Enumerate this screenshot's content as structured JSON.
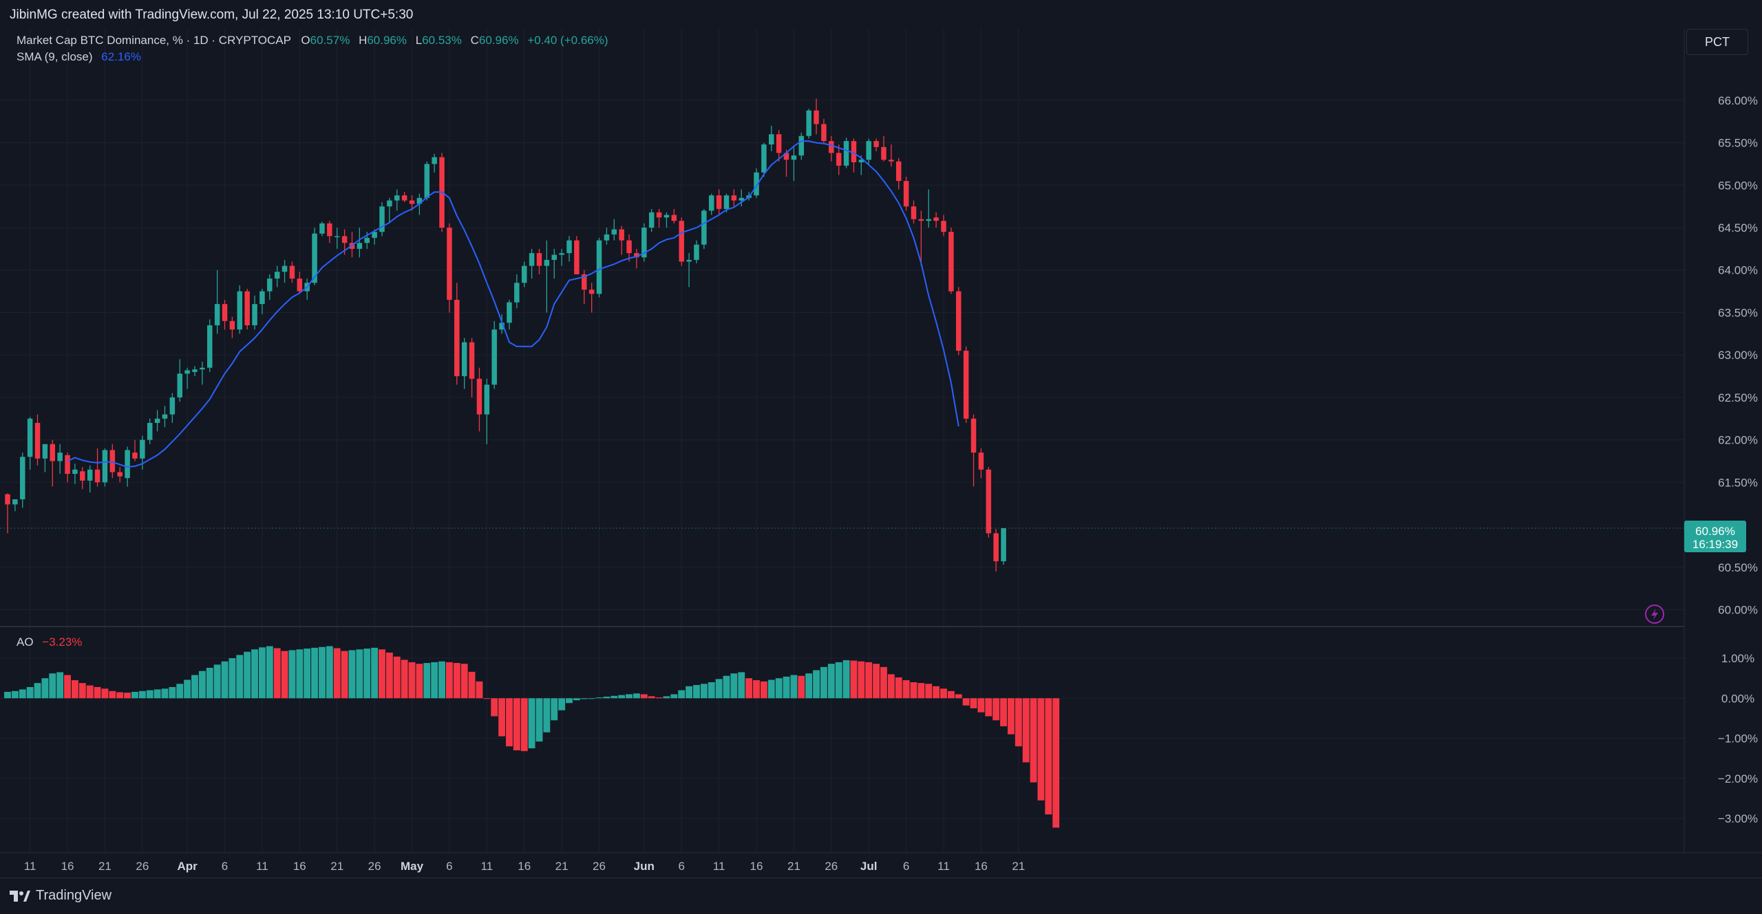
{
  "header": {
    "caption": "JibinMG created with TradingView.com, Jul 22, 2025 13:10 UTC+5:30"
  },
  "legend": {
    "symbol": "Market Cap BTC Dominance, % · 1D · CRYPTOCAP",
    "o_label": "O",
    "o_value": "60.57%",
    "h_label": "H",
    "h_value": "60.96%",
    "l_label": "L",
    "l_value": "60.53%",
    "c_label": "C",
    "c_value": "60.96%",
    "change": "+0.40 (+0.66%)",
    "sma_label": "SMA (9, close)",
    "sma_value": "62.16%"
  },
  "ao_legend": {
    "label": "AO",
    "value": "−3.23%"
  },
  "scale_button": "PCT",
  "price_tag": {
    "price": "60.96%",
    "countdown": "16:19:39"
  },
  "footer": {
    "brand": "TradingView"
  },
  "colors": {
    "up": "#26a69a",
    "down": "#f23645",
    "sma": "#2962ff",
    "background": "#131722",
    "grid": "#1e222d"
  },
  "icons": {
    "alert": "lightning-icon",
    "logo": "tradingview-logo-icon"
  },
  "chart_data": [
    {
      "type": "candlestick",
      "title": "Market Cap BTC Dominance, % · 1D · CRYPTOCAP",
      "y_unit": "%",
      "ylim": [
        59.85,
        66.25
      ],
      "y_ticks": [
        "66.00%",
        "65.50%",
        "65.00%",
        "64.50%",
        "64.00%",
        "63.50%",
        "63.00%",
        "62.50%",
        "62.00%",
        "61.50%",
        "60.50%",
        "60.00%"
      ],
      "y_tick_values": [
        66.0,
        65.5,
        65.0,
        64.5,
        64.0,
        63.5,
        63.0,
        62.5,
        62.0,
        61.5,
        60.5,
        60.0
      ],
      "x_ticks": [
        {
          "label": "11",
          "i": 3
        },
        {
          "label": "16",
          "i": 8
        },
        {
          "label": "21",
          "i": 13
        },
        {
          "label": "26",
          "i": 18
        },
        {
          "label": "Apr",
          "i": 24,
          "bold": true
        },
        {
          "label": "6",
          "i": 29
        },
        {
          "label": "11",
          "i": 34
        },
        {
          "label": "16",
          "i": 39
        },
        {
          "label": "21",
          "i": 44
        },
        {
          "label": "26",
          "i": 49
        },
        {
          "label": "May",
          "i": 54,
          "bold": true
        },
        {
          "label": "6",
          "i": 59
        },
        {
          "label": "11",
          "i": 64
        },
        {
          "label": "16",
          "i": 69
        },
        {
          "label": "21",
          "i": 74
        },
        {
          "label": "26",
          "i": 79
        },
        {
          "label": "Jun",
          "i": 85,
          "bold": true
        },
        {
          "label": "6",
          "i": 90
        },
        {
          "label": "11",
          "i": 95
        },
        {
          "label": "16",
          "i": 100
        },
        {
          "label": "21",
          "i": 105
        },
        {
          "label": "26",
          "i": 110
        },
        {
          "label": "Jul",
          "i": 115,
          "bold": true
        },
        {
          "label": "6",
          "i": 120
        },
        {
          "label": "11",
          "i": 125
        },
        {
          "label": "16",
          "i": 130
        },
        {
          "label": "21",
          "i": 135
        }
      ],
      "candles": [
        [
          61.36,
          61.37,
          60.9,
          61.24
        ],
        [
          61.24,
          61.3,
          61.16,
          61.3
        ],
        [
          61.3,
          61.85,
          61.2,
          61.8
        ],
        [
          61.8,
          62.27,
          61.65,
          62.25
        ],
        [
          62.2,
          62.3,
          61.7,
          61.78
        ],
        [
          61.78,
          61.95,
          61.62,
          61.95
        ],
        [
          61.95,
          62.0,
          61.45,
          61.75
        ],
        [
          61.75,
          61.95,
          61.6,
          61.85
        ],
        [
          61.82,
          61.85,
          61.5,
          61.6
        ],
        [
          61.6,
          61.72,
          61.48,
          61.65
        ],
        [
          61.63,
          61.68,
          61.42,
          61.52
        ],
        [
          61.52,
          61.7,
          61.38,
          61.65
        ],
        [
          61.65,
          61.9,
          61.45,
          61.5
        ],
        [
          61.5,
          61.9,
          61.45,
          61.88
        ],
        [
          61.88,
          61.95,
          61.55,
          61.62
        ],
        [
          61.62,
          61.68,
          61.5,
          61.57
        ],
        [
          61.55,
          61.92,
          61.45,
          61.88
        ],
        [
          61.85,
          62.0,
          61.75,
          61.78
        ],
        [
          61.78,
          62.05,
          61.65,
          62.0
        ],
        [
          62.0,
          62.25,
          61.95,
          62.2
        ],
        [
          62.2,
          62.35,
          62.1,
          62.25
        ],
        [
          62.25,
          62.4,
          62.15,
          62.3
        ],
        [
          62.3,
          62.55,
          62.2,
          62.5
        ],
        [
          62.5,
          62.95,
          62.45,
          62.78
        ],
        [
          62.78,
          62.85,
          62.6,
          62.82
        ],
        [
          62.8,
          62.87,
          62.75,
          62.83
        ],
        [
          62.83,
          62.92,
          62.65,
          62.85
        ],
        [
          62.85,
          63.42,
          62.8,
          63.35
        ],
        [
          63.35,
          64.0,
          63.25,
          63.6
        ],
        [
          63.6,
          63.65,
          63.3,
          63.4
        ],
        [
          63.4,
          63.45,
          63.2,
          63.3
        ],
        [
          63.3,
          63.82,
          63.25,
          63.75
        ],
        [
          63.75,
          63.78,
          63.3,
          63.35
        ],
        [
          63.35,
          63.7,
          63.3,
          63.6
        ],
        [
          63.6,
          63.78,
          63.48,
          63.75
        ],
        [
          63.75,
          63.95,
          63.65,
          63.9
        ],
        [
          63.9,
          64.05,
          63.8,
          63.98
        ],
        [
          63.98,
          64.12,
          63.85,
          64.05
        ],
        [
          64.05,
          64.1,
          63.85,
          63.9
        ],
        [
          63.9,
          63.98,
          63.72,
          63.75
        ],
        [
          63.75,
          63.9,
          63.65,
          63.85
        ],
        [
          63.85,
          64.5,
          63.82,
          64.43
        ],
        [
          64.43,
          64.57,
          64.4,
          64.55
        ],
        [
          64.55,
          64.58,
          64.32,
          64.4
        ],
        [
          64.4,
          64.5,
          64.25,
          64.4
        ],
        [
          64.4,
          64.48,
          64.18,
          64.32
        ],
        [
          64.32,
          64.45,
          64.15,
          64.25
        ],
        [
          64.25,
          64.5,
          64.15,
          64.32
        ],
        [
          64.32,
          64.45,
          64.25,
          64.38
        ],
        [
          64.38,
          64.48,
          64.3,
          64.45
        ],
        [
          64.45,
          64.8,
          64.4,
          64.75
        ],
        [
          64.75,
          64.85,
          64.55,
          64.82
        ],
        [
          64.82,
          64.95,
          64.7,
          64.88
        ],
        [
          64.88,
          64.92,
          64.8,
          64.82
        ],
        [
          64.82,
          64.88,
          64.7,
          64.78
        ],
        [
          64.78,
          64.9,
          64.65,
          64.85
        ],
        [
          64.85,
          65.28,
          64.82,
          65.25
        ],
        [
          65.25,
          65.37,
          65.15,
          65.33
        ],
        [
          65.33,
          65.38,
          64.45,
          64.5
        ],
        [
          64.5,
          64.55,
          63.5,
          63.65
        ],
        [
          63.65,
          63.85,
          62.65,
          62.75
        ],
        [
          62.75,
          63.2,
          62.6,
          63.15
        ],
        [
          63.15,
          63.2,
          62.5,
          62.72
        ],
        [
          62.72,
          62.85,
          62.1,
          62.3
        ],
        [
          62.3,
          62.72,
          61.95,
          62.65
        ],
        [
          62.65,
          63.4,
          62.6,
          63.3
        ],
        [
          63.3,
          63.48,
          63.25,
          63.38
        ],
        [
          63.38,
          63.65,
          63.3,
          63.62
        ],
        [
          63.62,
          63.95,
          63.55,
          63.85
        ],
        [
          63.85,
          64.1,
          63.8,
          64.05
        ],
        [
          64.05,
          64.25,
          63.9,
          64.2
        ],
        [
          64.2,
          64.25,
          63.95,
          64.05
        ],
        [
          64.05,
          64.35,
          63.5,
          64.12
        ],
        [
          64.12,
          64.25,
          63.9,
          64.18
        ],
        [
          64.18,
          64.25,
          64.05,
          64.2
        ],
        [
          64.2,
          64.4,
          64.1,
          64.35
        ],
        [
          64.35,
          64.4,
          63.95,
          63.95
        ],
        [
          63.95,
          64.0,
          63.6,
          63.77
        ],
        [
          63.77,
          63.85,
          63.5,
          63.72
        ],
        [
          63.72,
          64.38,
          63.68,
          64.35
        ],
        [
          64.35,
          64.5,
          64.3,
          64.42
        ],
        [
          64.42,
          64.6,
          64.35,
          64.48
        ],
        [
          64.48,
          64.52,
          64.18,
          64.35
        ],
        [
          64.35,
          64.42,
          64.1,
          64.2
        ],
        [
          64.2,
          64.25,
          64.02,
          64.15
        ],
        [
          64.15,
          64.55,
          64.1,
          64.5
        ],
        [
          64.5,
          64.72,
          64.45,
          64.68
        ],
        [
          64.68,
          64.72,
          64.5,
          64.62
        ],
        [
          64.62,
          64.68,
          64.5,
          64.65
        ],
        [
          64.65,
          64.72,
          64.55,
          64.58
        ],
        [
          64.58,
          64.62,
          64.05,
          64.1
        ],
        [
          64.1,
          64.2,
          63.8,
          64.12
        ],
        [
          64.12,
          64.35,
          64.08,
          64.3
        ],
        [
          64.3,
          64.72,
          64.25,
          64.7
        ],
        [
          64.7,
          64.9,
          64.65,
          64.88
        ],
        [
          64.88,
          64.95,
          64.65,
          64.72
        ],
        [
          64.72,
          64.9,
          64.68,
          64.88
        ],
        [
          64.88,
          64.95,
          64.75,
          64.82
        ],
        [
          64.82,
          64.95,
          64.75,
          64.85
        ],
        [
          64.85,
          64.92,
          64.82,
          64.88
        ],
        [
          64.88,
          65.2,
          64.85,
          65.15
        ],
        [
          65.15,
          65.5,
          65.1,
          65.48
        ],
        [
          65.48,
          65.7,
          65.4,
          65.6
        ],
        [
          65.6,
          65.65,
          65.28,
          65.38
        ],
        [
          65.38,
          65.42,
          65.1,
          65.3
        ],
        [
          65.3,
          65.45,
          65.05,
          65.35
        ],
        [
          65.35,
          65.62,
          65.3,
          65.58
        ],
        [
          65.58,
          65.9,
          65.55,
          65.88
        ],
        [
          65.88,
          66.02,
          65.6,
          65.72
        ],
        [
          65.72,
          65.78,
          65.5,
          65.52
        ],
        [
          65.52,
          65.58,
          65.28,
          65.38
        ],
        [
          65.38,
          65.48,
          65.12,
          65.23
        ],
        [
          65.23,
          65.56,
          65.2,
          65.52
        ],
        [
          65.52,
          65.55,
          65.15,
          65.27
        ],
        [
          65.27,
          65.35,
          65.12,
          65.3
        ],
        [
          65.3,
          65.55,
          65.25,
          65.52
        ],
        [
          65.52,
          65.55,
          65.4,
          65.45
        ],
        [
          65.45,
          65.58,
          65.28,
          65.3
        ],
        [
          65.3,
          65.48,
          65.22,
          65.28
        ],
        [
          65.28,
          65.32,
          64.95,
          65.05
        ],
        [
          65.05,
          65.1,
          64.7,
          64.75
        ],
        [
          64.75,
          64.82,
          64.55,
          64.6
        ],
        [
          64.6,
          64.7,
          64.05,
          64.58
        ],
        [
          64.58,
          64.95,
          64.5,
          64.6
        ],
        [
          64.62,
          64.68,
          64.5,
          64.58
        ],
        [
          64.58,
          64.65,
          64.4,
          64.45
        ],
        [
          64.45,
          64.5,
          63.72,
          63.75
        ],
        [
          63.75,
          63.8,
          63.0,
          63.05
        ],
        [
          63.05,
          63.1,
          62.2,
          62.25
        ],
        [
          62.25,
          62.3,
          61.45,
          61.85
        ],
        [
          61.85,
          61.9,
          61.55,
          61.65
        ],
        [
          61.65,
          61.68,
          60.85,
          60.9
        ],
        [
          60.9,
          60.95,
          60.45,
          60.57
        ],
        [
          60.57,
          60.96,
          60.53,
          60.96
        ]
      ],
      "sma_series": {
        "name": "SMA (9, close)",
        "values": [
          null,
          null,
          null,
          null,
          null,
          null,
          null,
          null,
          61.75,
          61.79,
          61.76,
          61.74,
          61.73,
          61.74,
          61.74,
          61.71,
          61.68,
          61.69,
          61.72,
          61.77,
          61.82,
          61.89,
          61.98,
          62.07,
          62.17,
          62.27,
          62.37,
          62.48,
          62.63,
          62.78,
          62.9,
          63.04,
          63.12,
          63.2,
          63.3,
          63.41,
          63.51,
          63.6,
          63.68,
          63.73,
          63.8,
          63.92,
          64.03,
          64.1,
          64.17,
          64.23,
          64.29,
          64.36,
          64.41,
          64.46,
          64.51,
          64.56,
          64.63,
          64.68,
          64.72,
          64.78,
          64.86,
          64.92,
          64.92,
          64.85,
          64.64,
          64.47,
          64.28,
          64.08,
          63.85,
          63.63,
          63.39,
          63.15,
          63.1,
          63.1,
          63.1,
          63.18,
          63.33,
          63.6,
          63.74,
          63.88,
          63.9,
          63.92,
          63.96,
          64.01,
          64.04,
          64.07,
          64.11,
          64.14,
          64.16,
          64.2,
          64.25,
          64.32,
          64.36,
          64.38,
          64.44,
          64.47,
          64.5,
          64.55,
          64.6,
          64.65,
          64.71,
          64.74,
          64.8,
          64.86,
          64.99,
          65.13,
          65.24,
          65.31,
          65.38,
          65.46,
          65.52,
          65.52,
          65.5,
          65.49,
          65.47,
          65.44,
          65.41,
          65.38,
          65.32,
          65.24,
          65.16,
          65.05,
          64.93,
          64.79,
          64.61,
          64.38,
          64.08,
          63.7,
          63.39,
          63.06,
          62.67,
          62.16
        ]
      }
    },
    {
      "type": "bar",
      "title": "AO",
      "y_unit": "%",
      "ylim": [
        -3.6,
        1.55
      ],
      "y_ticks": [
        "1.00%",
        "0.00%",
        "−1.00%",
        "−2.00%",
        "−3.00%"
      ],
      "y_tick_values": [
        1.0,
        0.0,
        -1.0,
        -2.0,
        -3.0
      ],
      "values": [
        0.16,
        0.18,
        0.22,
        0.28,
        0.38,
        0.5,
        0.62,
        0.65,
        0.58,
        0.45,
        0.38,
        0.32,
        0.28,
        0.24,
        0.18,
        0.15,
        0.14,
        0.16,
        0.18,
        0.2,
        0.22,
        0.24,
        0.28,
        0.36,
        0.46,
        0.58,
        0.68,
        0.76,
        0.84,
        0.92,
        1.0,
        1.08,
        1.16,
        1.22,
        1.27,
        1.3,
        1.25,
        1.18,
        1.2,
        1.22,
        1.24,
        1.26,
        1.28,
        1.3,
        1.25,
        1.18,
        1.2,
        1.22,
        1.24,
        1.26,
        1.22,
        1.14,
        1.04,
        0.96,
        0.9,
        0.86,
        0.88,
        0.9,
        0.92,
        0.9,
        0.88,
        0.86,
        0.66,
        0.42,
        0.0,
        -0.45,
        -0.95,
        -1.2,
        -1.3,
        -1.32,
        -1.25,
        -1.08,
        -0.85,
        -0.55,
        -0.3,
        -0.12,
        -0.05,
        -0.02,
        0.0,
        0.02,
        0.04,
        0.06,
        0.08,
        0.1,
        0.12,
        0.1,
        0.05,
        0.02,
        0.05,
        0.1,
        0.2,
        0.3,
        0.33,
        0.36,
        0.4,
        0.48,
        0.56,
        0.62,
        0.65,
        0.5,
        0.45,
        0.42,
        0.46,
        0.5,
        0.54,
        0.58,
        0.56,
        0.62,
        0.7,
        0.78,
        0.86,
        0.9,
        0.95,
        0.94,
        0.92,
        0.9,
        0.86,
        0.78,
        0.6,
        0.52,
        0.45,
        0.4,
        0.38,
        0.36,
        0.3,
        0.24,
        0.18,
        0.1,
        -0.18,
        -0.25,
        -0.35,
        -0.45,
        -0.55,
        -0.7,
        -0.9,
        -1.2,
        -1.6,
        -2.1,
        -2.55,
        -2.9,
        -3.23
      ]
    }
  ]
}
